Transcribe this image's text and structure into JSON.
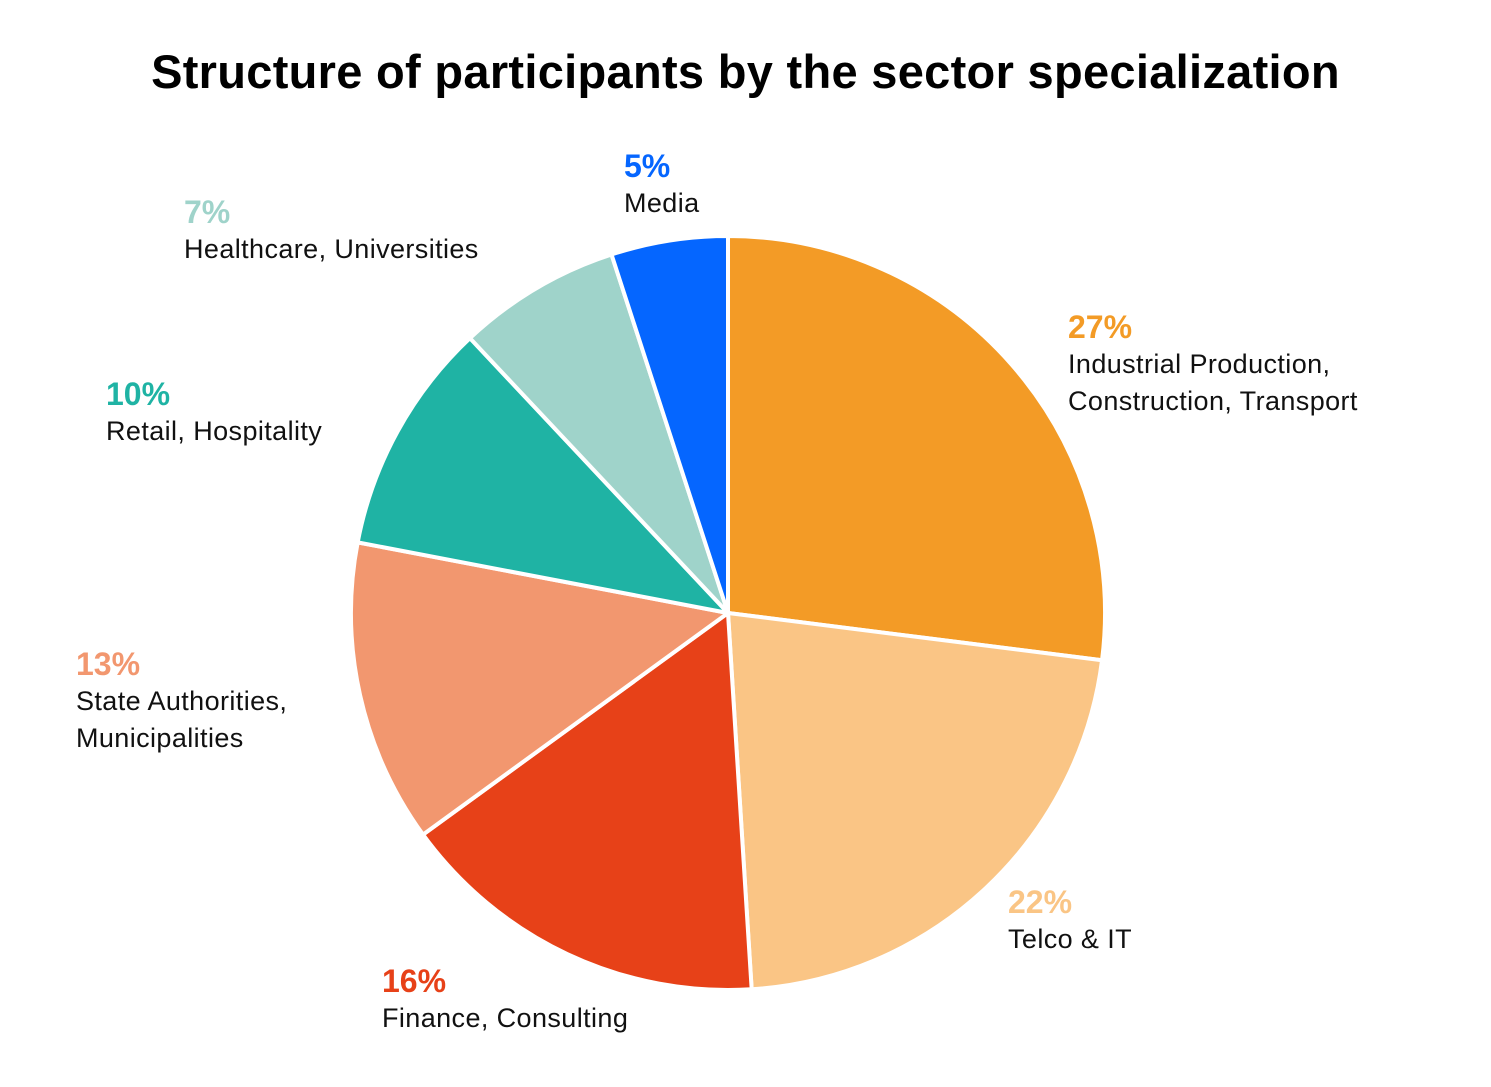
{
  "chart_data": {
    "type": "pie",
    "title": "Structure of participants by the sector specialization",
    "slices": [
      {
        "value": 27,
        "pct_label": "27%",
        "label": "Industrial Production, Construction, Transport",
        "label_lines": [
          "Industrial Production,",
          "Construction, Transport"
        ],
        "color": "#F39B26"
      },
      {
        "value": 22,
        "pct_label": "22%",
        "label": "Telco & IT",
        "label_lines": [
          "Telco & IT"
        ],
        "color": "#FAC585"
      },
      {
        "value": 16,
        "pct_label": "16%",
        "label": "Finance, Consulting",
        "label_lines": [
          "Finance, Consulting"
        ],
        "color": "#E74118"
      },
      {
        "value": 13,
        "pct_label": "13%",
        "label": "State Authorities, Municipalities",
        "label_lines": [
          "State Authorities,",
          "Municipalities"
        ],
        "color": "#F2976F"
      },
      {
        "value": 10,
        "pct_label": "10%",
        "label": "Retail, Hospitality",
        "label_lines": [
          "Retail, Hospitality"
        ],
        "color": "#1FB3A4"
      },
      {
        "value": 7,
        "pct_label": "7%",
        "label": "Healthcare, Universities",
        "label_lines": [
          "Healthcare, Universities"
        ],
        "color": "#9FD3CA"
      },
      {
        "value": 5,
        "pct_label": "5%",
        "label": "Media",
        "label_lines": [
          "Media"
        ],
        "color": "#0566FF"
      }
    ],
    "start_angle": "12 o'clock",
    "direction": "clockwise",
    "legend": "none"
  }
}
